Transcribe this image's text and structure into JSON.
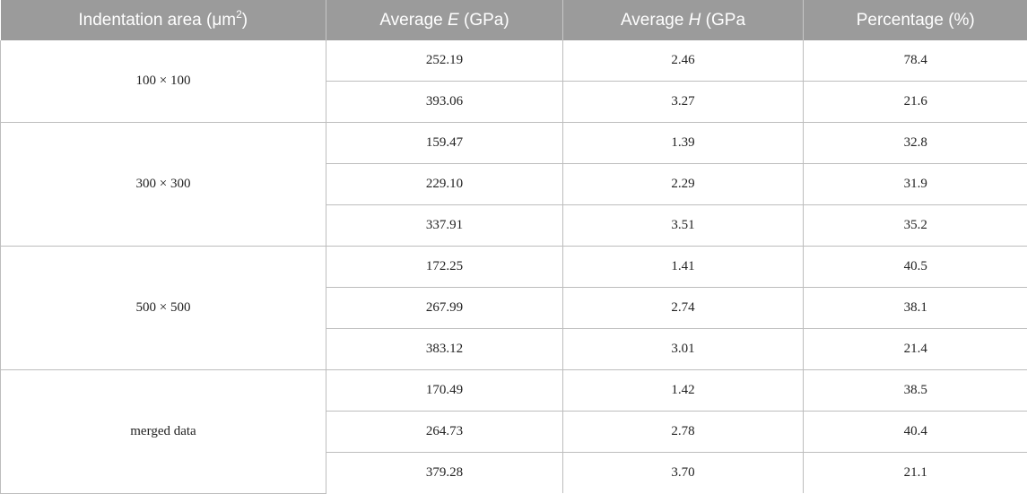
{
  "table": {
    "headers": {
      "col1_text": "Indentation area (μm",
      "col1_sup": "2",
      "col1_close": ")",
      "col2_pre": "Average ",
      "col2_symbol": "E",
      "col2_post": " (GPa)",
      "col3_pre": "Average ",
      "col3_symbol": "H",
      "col3_post": " (GPa",
      "col4": "Percentage (%)"
    },
    "groups": [
      {
        "label": "100 × 100",
        "rows": [
          {
            "E": "252.19",
            "H": "2.46",
            "pct": "78.4"
          },
          {
            "E": "393.06",
            "H": "3.27",
            "pct": "21.6"
          }
        ]
      },
      {
        "label": "300 × 300",
        "rows": [
          {
            "E": "159.47",
            "H": "1.39",
            "pct": "32.8"
          },
          {
            "E": "229.10",
            "H": "2.29",
            "pct": "31.9"
          },
          {
            "E": "337.91",
            "H": "3.51",
            "pct": "35.2"
          }
        ]
      },
      {
        "label": "500 × 500",
        "rows": [
          {
            "E": "172.25",
            "H": "1.41",
            "pct": "40.5"
          },
          {
            "E": "267.99",
            "H": "2.74",
            "pct": "38.1"
          },
          {
            "E": "383.12",
            "H": "3.01",
            "pct": "21.4"
          }
        ]
      },
      {
        "label": "merged data",
        "rows": [
          {
            "E": "170.49",
            "H": "1.42",
            "pct": "38.5"
          },
          {
            "E": "264.73",
            "H": "2.78",
            "pct": "40.4"
          },
          {
            "E": "379.28",
            "H": "3.70",
            "pct": "21.1"
          }
        ]
      }
    ]
  }
}
